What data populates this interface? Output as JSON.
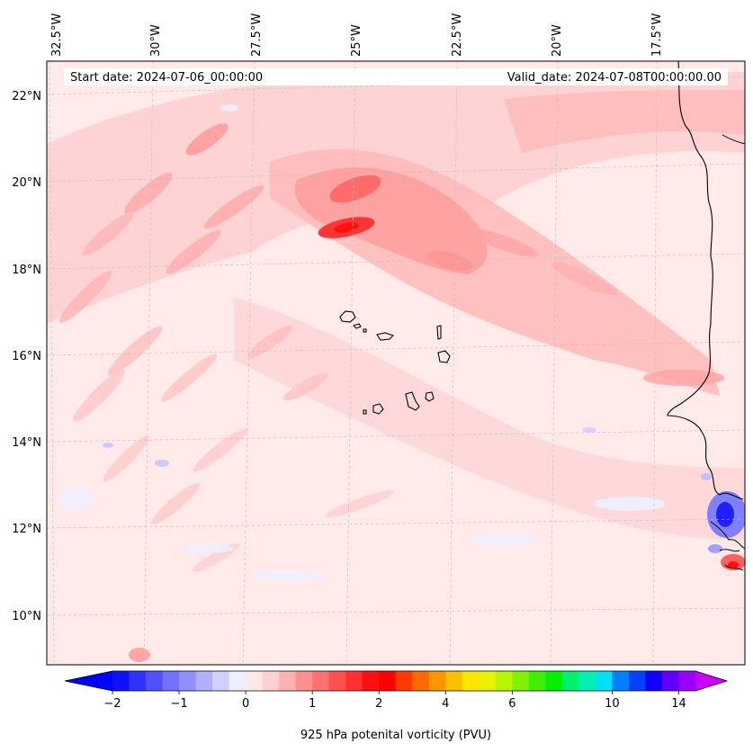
{
  "chart_data": {
    "type": "map",
    "variable": "925 hPa potenital vorticity (PVU)",
    "start_date_label": "Start date: 2024-07-06_00:00:00",
    "valid_date_label": "Valid_date: 2024-07-08T00:00:00.00",
    "lon_labels": [
      "32.5°W",
      "30°W",
      "27.5°W",
      "25°W",
      "22.5°W",
      "20°W",
      "17.5°W"
    ],
    "lat_labels": [
      "22°N",
      "20°N",
      "18°N",
      "16°N",
      "14°N",
      "12°N",
      "10°N"
    ],
    "colorbar": {
      "title": "925 hPa potenital vorticity (PVU)",
      "tick_labels": [
        "−2",
        "−1",
        "0",
        "1",
        "2",
        "4",
        "6",
        "10",
        "14"
      ],
      "colors": [
        "#1010ff",
        "#3030ff",
        "#5050ff",
        "#7272ff",
        "#9090ff",
        "#b0b0ff",
        "#d0d0ff",
        "#eeeeff",
        "#ffe8e8",
        "#ffd0d0",
        "#ffb0b0",
        "#ff9090",
        "#ff7070",
        "#ff5050",
        "#ff3030",
        "#ff1010",
        "#ff0000",
        "#ff3b00",
        "#ff6a00",
        "#ff9500",
        "#ffbf00",
        "#ffe600",
        "#e5f200",
        "#b8f500",
        "#80f200",
        "#40f000",
        "#00f000",
        "#00f070",
        "#00f0b4",
        "#00e0f0",
        "#0080ff",
        "#0040ff",
        "#1000ff",
        "#6000ff",
        "#9a00ff"
      ],
      "under_color": "#0000ff",
      "over_color": "#cc00ff"
    }
  }
}
